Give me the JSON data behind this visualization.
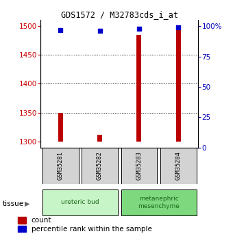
{
  "title": "GDS1572 / M32783cds_i_at",
  "samples": [
    "GSM35281",
    "GSM35282",
    "GSM35283",
    "GSM35284"
  ],
  "count_values": [
    1350,
    1312,
    1484,
    1500
  ],
  "percentile_values": [
    97,
    96,
    98,
    99
  ],
  "count_base": 1300,
  "ylim_left": [
    1290,
    1510
  ],
  "ylim_right": [
    0,
    105
  ],
  "yticks_left": [
    1300,
    1350,
    1400,
    1450,
    1500
  ],
  "yticks_right": [
    0,
    25,
    50,
    75,
    100
  ],
  "ytick_labels_right": [
    "0",
    "25",
    "50",
    "75",
    "100%"
  ],
  "grid_values": [
    1350,
    1400,
    1450
  ],
  "tissues": [
    {
      "label": "ureteric bud",
      "samples": [
        0,
        1
      ],
      "color": "#c8f5c8"
    },
    {
      "label": "metanephric\nmesenchyme",
      "samples": [
        2,
        3
      ],
      "color": "#7ed87e"
    }
  ],
  "bar_color": "#bb0000",
  "dot_color": "#0000cc",
  "bar_width": 0.12,
  "left_tick_color": "#cc0000",
  "right_tick_color": "#0000bb",
  "background_color": "#ffffff",
  "sample_box_color": "#d3d3d3",
  "legend_red_label": "count",
  "legend_blue_label": "percentile rank within the sample"
}
